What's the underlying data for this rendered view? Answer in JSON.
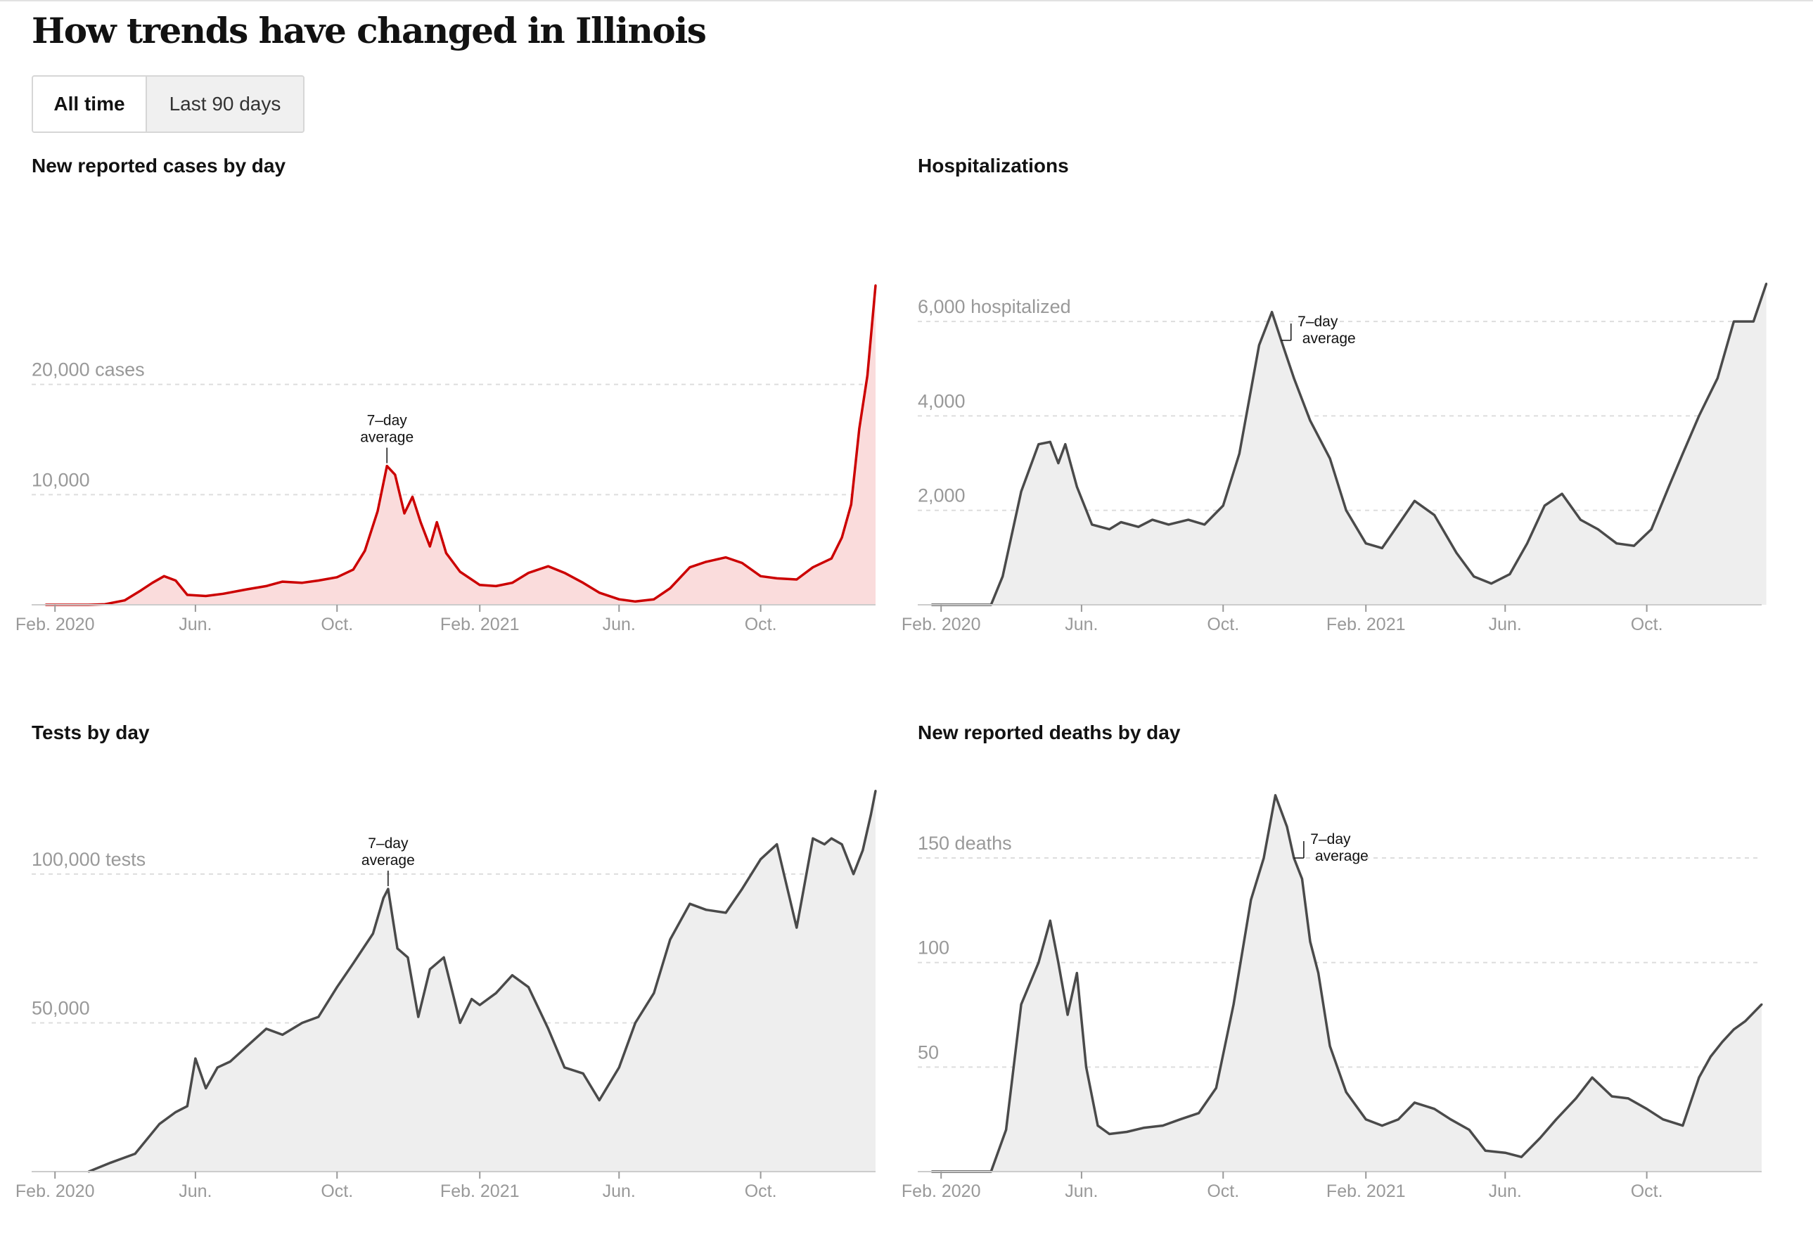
{
  "page": {
    "title": "How trends have changed in Illinois",
    "toggle": {
      "active": "All time",
      "inactive": "Last 90 days"
    }
  },
  "colors": {
    "cases_line": "#cc0000",
    "cases_fill": "#fadcdc",
    "gray_line": "#4a4a4a",
    "gray_fill": "#eeeeee",
    "grid": "#dddddd",
    "axis": "#999999"
  },
  "chart_data": [
    {
      "type": "area",
      "id": "cases",
      "title": "New reported cases by day",
      "line_color": "#cc0000",
      "fill_color": "#fadcdc",
      "x_ticks": [
        "Feb. 2020",
        "Jun.",
        "Oct.",
        "Feb. 2021",
        "Jun.",
        "Oct."
      ],
      "ylim": [
        0,
        30000
      ],
      "y_ticks": [
        {
          "value": 10000,
          "label": "10,000"
        },
        {
          "value": 20000,
          "label": "20,000 cases"
        }
      ],
      "annotation": {
        "line1": "7–day",
        "line2": "average",
        "x": "2020-11-13"
      },
      "x": [
        "2020-01-24",
        "2020-03-01",
        "2020-03-15",
        "2020-04-01",
        "2020-04-15",
        "2020-04-25",
        "2020-05-05",
        "2020-05-15",
        "2020-05-25",
        "2020-06-10",
        "2020-06-25",
        "2020-07-15",
        "2020-08-01",
        "2020-08-15",
        "2020-09-01",
        "2020-09-15",
        "2020-10-01",
        "2020-10-15",
        "2020-10-25",
        "2020-11-05",
        "2020-11-13",
        "2020-11-20",
        "2020-11-28",
        "2020-12-05",
        "2020-12-12",
        "2020-12-20",
        "2020-12-26",
        "2021-01-03",
        "2021-01-15",
        "2021-02-01",
        "2021-02-15",
        "2021-03-01",
        "2021-03-15",
        "2021-04-01",
        "2021-04-15",
        "2021-05-01",
        "2021-05-15",
        "2021-06-01",
        "2021-06-15",
        "2021-07-01",
        "2021-07-15",
        "2021-08-01",
        "2021-08-15",
        "2021-09-01",
        "2021-09-15",
        "2021-10-01",
        "2021-10-15",
        "2021-11-01",
        "2021-11-15",
        "2021-12-01",
        "2021-12-10",
        "2021-12-18",
        "2021-12-25",
        "2022-01-01",
        "2022-01-08"
      ],
      "y": [
        0,
        0,
        50,
        400,
        1300,
        2000,
        2600,
        2200,
        900,
        800,
        1000,
        1400,
        1700,
        2100,
        2000,
        2200,
        2500,
        3200,
        4900,
        8500,
        12600,
        11800,
        8300,
        9800,
        7500,
        5300,
        7500,
        4700,
        3000,
        1800,
        1700,
        2000,
        2900,
        3500,
        2900,
        2000,
        1100,
        500,
        300,
        500,
        1500,
        3400,
        3900,
        4300,
        3800,
        2600,
        2400,
        2300,
        3400,
        4200,
        6100,
        9100,
        16000,
        20800,
        29000
      ]
    },
    {
      "type": "area",
      "id": "hosp",
      "title": "Hospitalizations",
      "line_color": "#4a4a4a",
      "fill_color": "#eeeeee",
      "x_ticks": [
        "Feb. 2020",
        "Jun.",
        "Oct.",
        "Feb. 2021",
        "Jun.",
        "Oct."
      ],
      "ylim": [
        0,
        7000
      ],
      "y_ticks": [
        {
          "value": 2000,
          "label": "2,000"
        },
        {
          "value": 4000,
          "label": "4,000"
        },
        {
          "value": 6000,
          "label": "6,000 hospitalized"
        }
      ],
      "annotation": {
        "line1": "7–day",
        "line2": "average",
        "x": "2020-11-20"
      },
      "x": [
        "2020-01-24",
        "2020-03-15",
        "2020-03-25",
        "2020-04-10",
        "2020-04-25",
        "2020-05-05",
        "2020-05-12",
        "2020-05-18",
        "2020-05-28",
        "2020-06-10",
        "2020-06-25",
        "2020-07-05",
        "2020-07-20",
        "2020-08-01",
        "2020-08-15",
        "2020-09-01",
        "2020-09-15",
        "2020-10-01",
        "2020-10-15",
        "2020-11-01",
        "2020-11-12",
        "2020-11-20",
        "2020-12-01",
        "2020-12-15",
        "2021-01-01",
        "2021-01-15",
        "2021-02-01",
        "2021-02-15",
        "2021-03-01",
        "2021-03-15",
        "2021-04-01",
        "2021-04-20",
        "2021-05-05",
        "2021-05-20",
        "2021-06-05",
        "2021-06-20",
        "2021-07-05",
        "2021-07-20",
        "2021-08-05",
        "2021-08-20",
        "2021-09-05",
        "2021-09-20",
        "2021-10-05",
        "2021-10-20",
        "2021-11-01",
        "2021-11-15",
        "2021-12-01",
        "2021-12-15",
        "2022-01-01",
        "2022-01-12"
      ],
      "y": [
        0,
        0,
        600,
        2400,
        3400,
        3450,
        3000,
        3400,
        2500,
        1700,
        1600,
        1750,
        1650,
        1800,
        1700,
        1800,
        1700,
        2100,
        3200,
        5500,
        6200,
        5600,
        4800,
        3900,
        3100,
        2000,
        1300,
        1200,
        1700,
        2200,
        1900,
        1100,
        600,
        450,
        650,
        1300,
        2100,
        2350,
        1800,
        1600,
        1300,
        1250,
        1600,
        2500,
        3200,
        4000,
        4800,
        6000,
        6000,
        6800
      ]
    },
    {
      "type": "area",
      "id": "tests",
      "title": "Tests by day",
      "line_color": "#4a4a4a",
      "fill_color": "#eeeeee",
      "x_ticks": [
        "Feb. 2020",
        "Jun.",
        "Oct.",
        "Feb. 2021",
        "Jun.",
        "Oct."
      ],
      "ylim": [
        0,
        130000
      ],
      "y_ticks": [
        {
          "value": 50000,
          "label": "50,000"
        },
        {
          "value": 100000,
          "label": "100,000 tests"
        }
      ],
      "annotation": {
        "line1": "7–day",
        "line2": "average",
        "x": "2020-11-14"
      },
      "x": [
        "2020-03-01",
        "2020-03-20",
        "2020-04-10",
        "2020-05-01",
        "2020-05-15",
        "2020-05-25",
        "2020-06-01",
        "2020-06-10",
        "2020-06-20",
        "2020-07-01",
        "2020-07-15",
        "2020-08-01",
        "2020-08-15",
        "2020-09-01",
        "2020-09-15",
        "2020-10-01",
        "2020-10-15",
        "2020-11-01",
        "2020-11-10",
        "2020-11-14",
        "2020-11-22",
        "2020-12-01",
        "2020-12-10",
        "2020-12-20",
        "2021-01-01",
        "2021-01-15",
        "2021-01-25",
        "2021-02-01",
        "2021-02-15",
        "2021-03-01",
        "2021-03-15",
        "2021-04-01",
        "2021-04-15",
        "2021-05-01",
        "2021-05-15",
        "2021-06-01",
        "2021-06-15",
        "2021-07-01",
        "2021-07-15",
        "2021-08-01",
        "2021-08-15",
        "2021-09-01",
        "2021-09-15",
        "2021-10-01",
        "2021-10-15",
        "2021-11-01",
        "2021-11-15",
        "2021-11-25",
        "2021-12-01",
        "2021-12-10",
        "2021-12-20",
        "2021-12-28",
        "2022-01-04",
        "2022-01-08"
      ],
      "y": [
        0,
        3000,
        6000,
        16000,
        20000,
        22000,
        38000,
        28000,
        35000,
        37000,
        42000,
        48000,
        46000,
        50000,
        52000,
        62000,
        70000,
        80000,
        92000,
        95000,
        75000,
        72000,
        52000,
        68000,
        72000,
        50000,
        58000,
        56000,
        60000,
        66000,
        62000,
        48000,
        35000,
        33000,
        24000,
        35000,
        50000,
        60000,
        78000,
        90000,
        88000,
        87000,
        95000,
        105000,
        110000,
        82000,
        112000,
        110000,
        112000,
        110000,
        100000,
        108000,
        120000,
        128000
      ]
    },
    {
      "type": "area",
      "id": "deaths",
      "title": "New reported deaths by day",
      "line_color": "#4a4a4a",
      "fill_color": "#eeeeee",
      "x_ticks": [
        "Feb. 2020",
        "Jun.",
        "Oct.",
        "Feb. 2021",
        "Jun.",
        "Oct."
      ],
      "ylim": [
        0,
        185
      ],
      "y_ticks": [
        {
          "value": 50,
          "label": "50"
        },
        {
          "value": 100,
          "label": "100"
        },
        {
          "value": 150,
          "label": "150 deaths"
        }
      ],
      "annotation": {
        "line1": "7–day",
        "line2": "average",
        "x": "2020-12-01"
      },
      "x": [
        "2020-01-24",
        "2020-03-15",
        "2020-03-28",
        "2020-04-10",
        "2020-04-25",
        "2020-05-05",
        "2020-05-12",
        "2020-05-20",
        "2020-05-28",
        "2020-06-05",
        "2020-06-15",
        "2020-06-25",
        "2020-07-10",
        "2020-07-25",
        "2020-08-10",
        "2020-08-25",
        "2020-09-10",
        "2020-09-25",
        "2020-10-10",
        "2020-10-25",
        "2020-11-05",
        "2020-11-15",
        "2020-11-25",
        "2020-12-01",
        "2020-12-08",
        "2020-12-15",
        "2020-12-22",
        "2021-01-01",
        "2021-01-15",
        "2021-02-01",
        "2021-02-15",
        "2021-03-01",
        "2021-03-15",
        "2021-04-01",
        "2021-04-15",
        "2021-05-01",
        "2021-05-15",
        "2021-06-01",
        "2021-06-15",
        "2021-07-01",
        "2021-07-15",
        "2021-08-01",
        "2021-08-15",
        "2021-09-01",
        "2021-09-15",
        "2021-10-01",
        "2021-10-15",
        "2021-11-01",
        "2021-11-15",
        "2021-11-25",
        "2021-12-05",
        "2021-12-15",
        "2021-12-25",
        "2022-01-08"
      ],
      "y": [
        0,
        0,
        20,
        80,
        100,
        120,
        100,
        75,
        95,
        50,
        22,
        18,
        19,
        21,
        22,
        25,
        28,
        40,
        80,
        130,
        150,
        180,
        165,
        150,
        140,
        110,
        95,
        60,
        38,
        25,
        22,
        25,
        33,
        30,
        25,
        20,
        10,
        9,
        7,
        16,
        25,
        35,
        45,
        36,
        35,
        30,
        25,
        22,
        45,
        55,
        62,
        68,
        72,
        80
      ]
    }
  ]
}
